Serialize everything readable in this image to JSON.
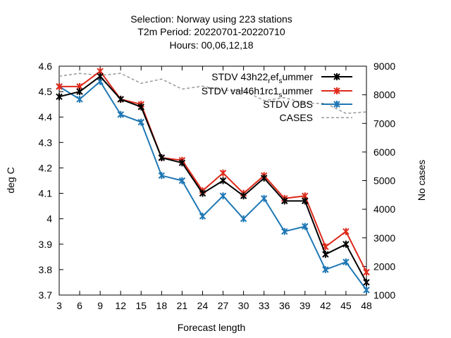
{
  "chart_data": {
    "type": "line",
    "title_lines": [
      "Selection: Norway using   223 stations",
      "T2m   Period: 20220701-20220710",
      "Hours:  00,06,12,18"
    ],
    "xlabel": "Forecast length",
    "ylabel": "deg C",
    "y2label": "No cases",
    "x": [
      3,
      6,
      9,
      12,
      15,
      18,
      21,
      24,
      27,
      30,
      33,
      36,
      39,
      42,
      45,
      48
    ],
    "xlim": [
      3,
      48
    ],
    "ylim": [
      3.7,
      4.6
    ],
    "y2lim": [
      1000,
      9000
    ],
    "yticks": [
      "3.7",
      "3.8",
      "3.9",
      "4",
      "4.1",
      "4.2",
      "4.3",
      "4.4",
      "4.5",
      "4.6"
    ],
    "y2ticks": [
      "1000",
      "2000",
      "3000",
      "4000",
      "5000",
      "6000",
      "7000",
      "8000",
      "9000"
    ],
    "legend_position": "top-right",
    "series": [
      {
        "name": "STDV 43h22_ref_summer",
        "legend_parts": {
          "main": "STDV 43h22",
          "sub1": "r",
          "mid": "ef",
          "sub2": "s",
          "tail": "ummer"
        },
        "color": "#000000",
        "axis": "y",
        "values": [
          4.48,
          4.5,
          4.56,
          4.47,
          4.44,
          4.24,
          4.22,
          4.1,
          4.15,
          4.09,
          4.16,
          4.07,
          4.07,
          3.86,
          3.9,
          3.75
        ]
      },
      {
        "name": "STDV val46h1rc1_summer",
        "legend_parts": {
          "main": "STDV val46h1rc1",
          "sub1": "",
          "mid": "",
          "sub2": "s",
          "tail": "ummer"
        },
        "color": "#dd2a1b",
        "axis": "y",
        "values": [
          4.52,
          4.52,
          4.58,
          4.47,
          4.45,
          4.24,
          4.23,
          4.11,
          4.18,
          4.1,
          4.17,
          4.08,
          4.09,
          3.89,
          3.95,
          3.79
        ]
      },
      {
        "name": "STDV OBS",
        "legend_parts": {
          "main": "STDV OBS",
          "sub1": "",
          "mid": "",
          "sub2": "",
          "tail": ""
        },
        "color": "#1f77b4",
        "axis": "y",
        "values": [
          4.52,
          4.47,
          4.54,
          4.41,
          4.38,
          4.17,
          4.15,
          4.01,
          4.09,
          4.0,
          4.08,
          3.95,
          3.97,
          3.8,
          3.83,
          3.72
        ]
      },
      {
        "name": "CASES",
        "legend_parts": {
          "main": "CASES",
          "sub1": "",
          "mid": "",
          "sub2": "",
          "tail": ""
        },
        "color": "#999999",
        "axis": "y2",
        "dashed": true,
        "values": [
          8650,
          8750,
          8680,
          8750,
          8400,
          8550,
          8200,
          8300,
          8150,
          8150,
          7800,
          7900,
          7700,
          7700,
          7350,
          7400
        ]
      }
    ]
  }
}
